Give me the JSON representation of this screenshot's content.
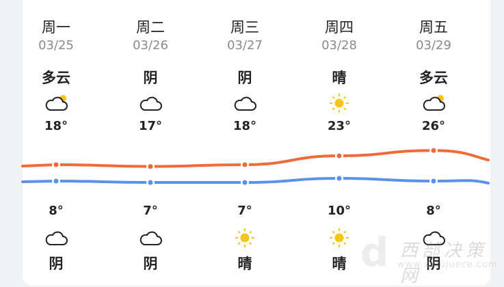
{
  "days": [
    {
      "weekday": "周一",
      "date": "03/25",
      "day_cond": "多云",
      "day_icon": "partly-cloudy-icon",
      "high": "18°",
      "low": "8°",
      "night_icon": "cloud-icon",
      "night_cond": "阴"
    },
    {
      "weekday": "周二",
      "date": "03/26",
      "day_cond": "阴",
      "day_icon": "cloud-icon",
      "high": "17°",
      "low": "7°",
      "night_icon": "cloud-icon",
      "night_cond": "阴"
    },
    {
      "weekday": "周三",
      "date": "03/27",
      "day_cond": "阴",
      "day_icon": "cloud-icon",
      "high": "18°",
      "low": "7°",
      "night_icon": "sun-icon",
      "night_cond": "晴"
    },
    {
      "weekday": "周四",
      "date": "03/28",
      "day_cond": "晴",
      "day_icon": "sun-icon",
      "high": "23°",
      "low": "10°",
      "night_icon": "sun-icon",
      "night_cond": "晴"
    },
    {
      "weekday": "周五",
      "date": "03/29",
      "day_cond": "多云",
      "day_icon": "partly-cloudy-icon",
      "high": "26°",
      "low": "8°",
      "night_icon": "cloud-icon",
      "night_cond": "阴"
    }
  ],
  "chart_data": {
    "type": "line",
    "categories": [
      "03/25",
      "03/26",
      "03/27",
      "03/28",
      "03/29"
    ],
    "series": [
      {
        "values": [
          18,
          17,
          18,
          23,
          26
        ],
        "color": "#f06a3a"
      },
      {
        "values": [
          8,
          7,
          7,
          10,
          8
        ],
        "color": "#5b8ff0"
      }
    ]
  },
  "watermark": {
    "text": "西部决策网",
    "url": "www.xibujuece.com"
  }
}
